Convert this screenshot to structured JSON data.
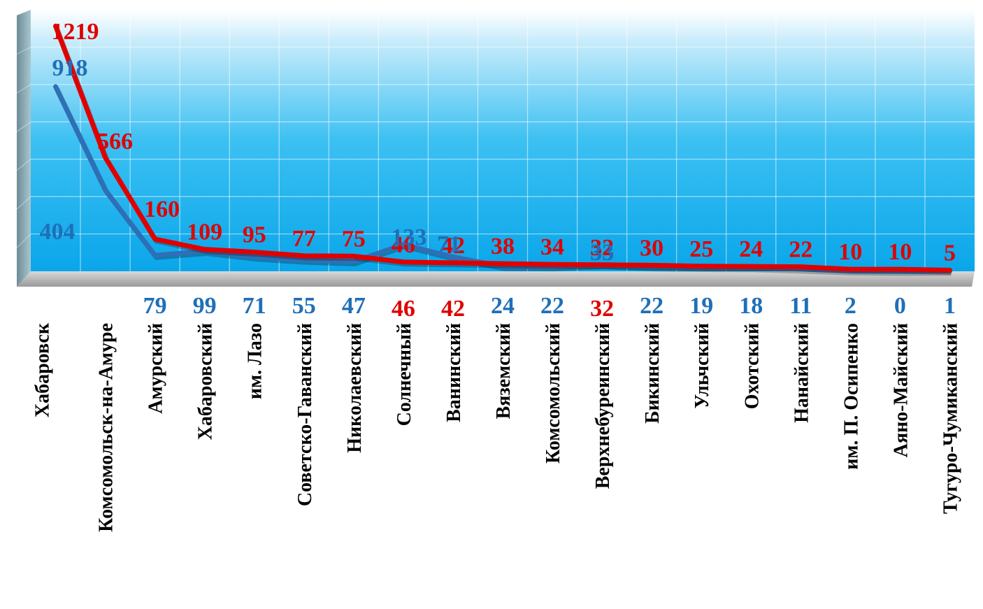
{
  "chart_data": {
    "type": "line",
    "categories": [
      "Хабаровск",
      "Комсомольск-на-Амуре",
      "Амурский",
      "Хабаровский",
      "им. Лазо",
      "Советско-Гаванский",
      "Николаевский",
      "Солнечный",
      "Ванинский",
      "Вяземский",
      "Комсомольский",
      "Верхнебуреинский",
      "Бикинский",
      "Ульчский",
      "Охотский",
      "Нанайский",
      "им. П. Осипенко",
      "Аяно-Майский",
      "Тугуро-Чумиканский"
    ],
    "series": [
      {
        "color": "#e00000",
        "values": [
          1219,
          566,
          160,
          109,
          95,
          77,
          75,
          46,
          42,
          38,
          34,
          32,
          30,
          25,
          24,
          22,
          10,
          10,
          5
        ]
      },
      {
        "color": "#2f6fb5",
        "values": [
          918,
          404,
          79,
          99,
          71,
          55,
          47,
          133,
          71,
          24,
          22,
          33,
          22,
          19,
          18,
          11,
          2,
          0,
          1
        ]
      }
    ],
    "ylim": [
      0,
      1300
    ],
    "grid": true,
    "legend": "none",
    "colors": {
      "red": "#e00000",
      "blue": "#1f6fb8",
      "red_line": "#e00000",
      "blue_line": "#5b7fb0"
    }
  }
}
